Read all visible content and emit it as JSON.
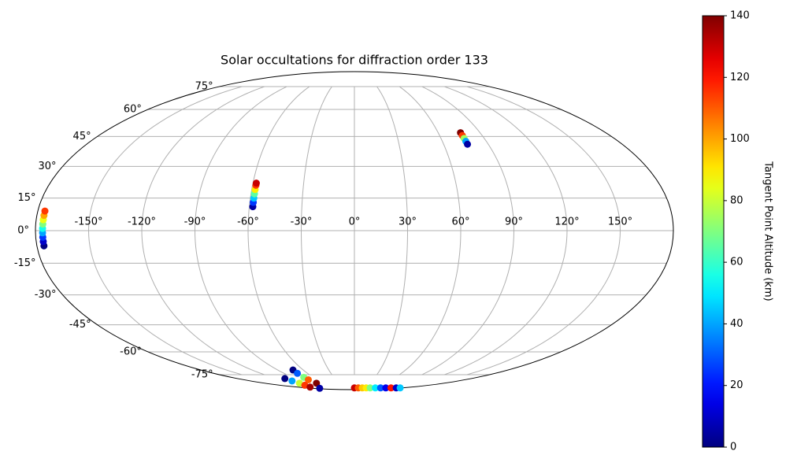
{
  "chart_data": {
    "type": "scatter",
    "projection": "mollweide",
    "title": "Solar occultations for diffraction order 133",
    "colorbar_label": "Tangent Point Altitude (km)",
    "colormap": "jet",
    "clim": [
      0,
      140
    ],
    "cticks": [
      0,
      20,
      40,
      60,
      80,
      100,
      120,
      140
    ],
    "grid": true,
    "xlim": [
      -180,
      180
    ],
    "ylim": [
      -90,
      90
    ],
    "xticks": [
      {
        "value": -150,
        "label": "-150°"
      },
      {
        "value": -120,
        "label": "-120°"
      },
      {
        "value": -90,
        "label": "-90°"
      },
      {
        "value": -60,
        "label": "-60°"
      },
      {
        "value": -30,
        "label": "-30°"
      },
      {
        "value": 0,
        "label": "0°"
      },
      {
        "value": 30,
        "label": "30°"
      },
      {
        "value": 60,
        "label": "60°"
      },
      {
        "value": 90,
        "label": "90°"
      },
      {
        "value": 120,
        "label": "120°"
      },
      {
        "value": 150,
        "label": "150°"
      }
    ],
    "yticks": [
      {
        "value": -75,
        "label": "-75°"
      },
      {
        "value": -60,
        "label": "-60°"
      },
      {
        "value": -45,
        "label": "-45°"
      },
      {
        "value": -30,
        "label": "-30°"
      },
      {
        "value": -15,
        "label": "-15°"
      },
      {
        "value": 0,
        "label": "0°"
      },
      {
        "value": 15,
        "label": "15°"
      },
      {
        "value": 30,
        "label": "30°"
      },
      {
        "value": 45,
        "label": "45°"
      },
      {
        "value": 60,
        "label": "60°"
      },
      {
        "value": 75,
        "label": "75°"
      }
    ],
    "x": [
      -176,
      -176,
      -176,
      -176,
      -176,
      -176,
      -176,
      -176,
      -176,
      -58,
      -58,
      -58,
      -58,
      -58,
      -58,
      -58,
      76,
      76,
      76,
      76,
      76,
      -72,
      -73,
      -74,
      -75,
      -76,
      -107,
      -108,
      -110,
      -120,
      -140,
      -150,
      0,
      15,
      30,
      45,
      60,
      80,
      100,
      120,
      140,
      160,
      175
    ],
    "values": [
      -7,
      -5,
      -3,
      -1,
      1,
      3,
      5,
      7,
      9,
      11,
      13,
      15,
      17,
      19,
      21,
      22,
      47,
      45.5,
      44,
      42.5,
      41,
      -71.6,
      -74,
      -77,
      -79,
      -82,
      -78,
      -80,
      -82,
      -84,
      -86,
      -87.5,
      -87,
      -87,
      -87,
      -87,
      -87,
      -87,
      -87,
      -87,
      -87,
      -87,
      -87
    ],
    "c": [
      0,
      10,
      25,
      40,
      55,
      70,
      85,
      100,
      115,
      5,
      25,
      45,
      65,
      90,
      115,
      130,
      140,
      115,
      75,
      40,
      5,
      0,
      30,
      70,
      110,
      140,
      0,
      40,
      80,
      115,
      135,
      5,
      130,
      110,
      95,
      90,
      70,
      50,
      30,
      15,
      120,
      10,
      45
    ]
  }
}
